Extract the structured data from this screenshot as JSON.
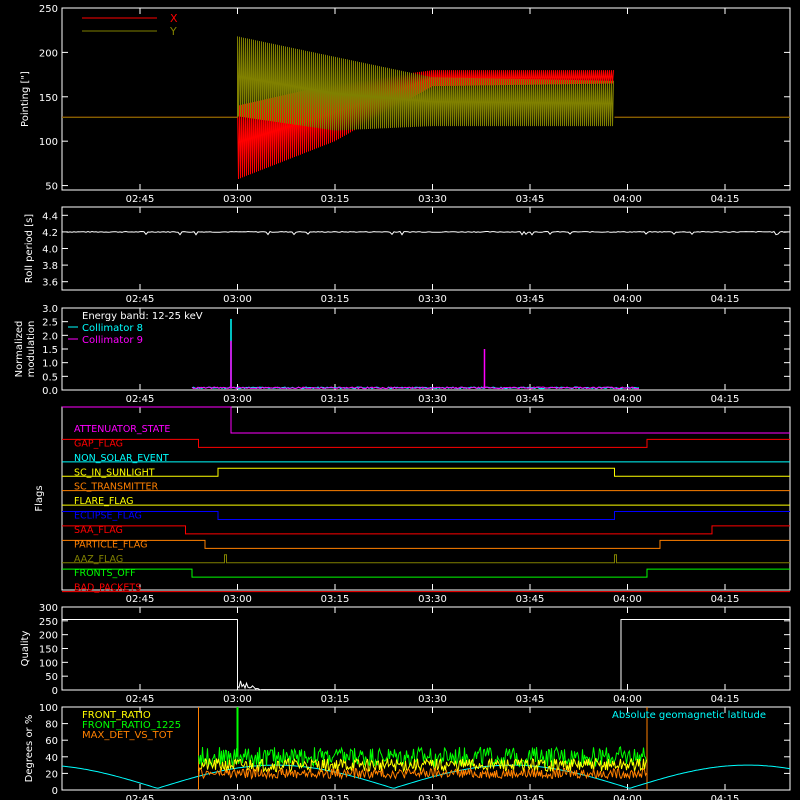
{
  "x_ticks": [
    "02:45",
    "03:00",
    "03:15",
    "03:30",
    "03:45",
    "04:00",
    "04:15"
  ],
  "chart_data": [
    {
      "type": "line",
      "ylabel": "Pointing [\"]",
      "ylim": [
        45,
        250
      ],
      "yticks": [
        50,
        100,
        150,
        200,
        250
      ],
      "legend_position": "top-left",
      "series": [
        {
          "name": "X",
          "color": "#ff0000",
          "pre_value": 127,
          "post_value": 127,
          "active": {
            "start": "03:00",
            "end": "03:58"
          },
          "envelope_hours": [
            3.0,
            3.25,
            3.5,
            3.97
          ],
          "envelope_max": [
            140,
            165,
            180,
            180
          ],
          "envelope_min": [
            57,
            100,
            162,
            165
          ]
        },
        {
          "name": "Y",
          "color": "#808000",
          "pre_value": 127,
          "post_value": 127,
          "active": {
            "start": "03:00",
            "end": "03:58"
          },
          "envelope_hours": [
            3.0,
            3.25,
            3.5,
            3.97
          ],
          "envelope_max": [
            218,
            195,
            172,
            168
          ],
          "envelope_min": [
            128,
            112,
            117,
            117
          ]
        }
      ]
    },
    {
      "type": "line",
      "ylabel": "Roll period [s]",
      "ylim": [
        3.5,
        4.5
      ],
      "yticks": [
        "3.6",
        "3.8",
        "4.0",
        "4.2",
        "4.4"
      ],
      "series": [
        {
          "name": "",
          "color": "#ffffff",
          "value": 4.2
        }
      ]
    },
    {
      "type": "line",
      "ylabel": "Normalized modulation",
      "ylim": [
        0,
        3.0
      ],
      "yticks": [
        "0.0",
        "0.5",
        "1.0",
        "1.5",
        "2.0",
        "2.5",
        "3.0"
      ],
      "annotation": "Energy band: 12-25 keV",
      "series": [
        {
          "name": "Collimator 8",
          "color": "#00ffff",
          "baseline": 0.05,
          "active": {
            "start": "02:53",
            "end": "04:02"
          },
          "spikes": [
            {
              "x": "02:59",
              "y": 2.6
            }
          ]
        },
        {
          "name": "Collimator 9",
          "color": "#ff00ff",
          "baseline": 0.05,
          "active": {
            "start": "02:53",
            "end": "04:02"
          },
          "spikes": [
            {
              "x": "02:59",
              "y": 1.8
            },
            {
              "x": "03:38",
              "y": 1.5
            }
          ]
        }
      ]
    },
    {
      "type": "line",
      "ylabel": "Flags",
      "flags": [
        {
          "name": "ATTENUATOR_STATE",
          "color": "#ff00ff",
          "low_before": "02:59"
        },
        {
          "name": "GAP_FLAG",
          "color": "#ff0000",
          "high_ranges": [
            [
              "start",
              "02:54"
            ],
            [
              "04:03",
              "end"
            ]
          ]
        },
        {
          "name": "NON_SOLAR_EVENT",
          "color": "#00ffff"
        },
        {
          "name": "SC_IN_SUNLIGHT",
          "color": "#ffff00",
          "high_ranges": [
            [
              "02:57",
              "03:58"
            ]
          ]
        },
        {
          "name": "SC_TRANSMITTER",
          "color": "#ff8000"
        },
        {
          "name": "FLARE_FLAG",
          "color": "#ffff00"
        },
        {
          "name": "ECLIPSE_FLAG",
          "color": "#0000ff",
          "high_ranges": [
            [
              "start",
              "02:57"
            ],
            [
              "03:58",
              "end"
            ]
          ]
        },
        {
          "name": "SAA_FLAG",
          "color": "#ff0000",
          "high_ranges": [
            [
              "start",
              "02:52"
            ],
            [
              "04:13",
              "end"
            ]
          ]
        },
        {
          "name": "PARTICLE_FLAG",
          "color": "#ff8000",
          "high_ranges": [
            [
              "start",
              "02:55"
            ],
            [
              "04:05",
              "end"
            ]
          ]
        },
        {
          "name": "AAZ_FLAG",
          "color": "#808000",
          "pulses": [
            "02:58",
            "03:58"
          ]
        },
        {
          "name": "FRONTS_OFF",
          "color": "#00ff00",
          "high_ranges": [
            [
              "start",
              "02:53"
            ],
            [
              "04:03",
              "end"
            ]
          ]
        },
        {
          "name": "BAD_PACKETS",
          "color": "#ff0000"
        }
      ]
    },
    {
      "type": "line",
      "ylabel": "Quality",
      "ylim": [
        0,
        300
      ],
      "yticks": [
        "0",
        "50",
        "100",
        "150",
        "200",
        "250",
        "300"
      ],
      "series": [
        {
          "name": "",
          "color": "#ffffff",
          "high_value": 255,
          "low_value": 0,
          "high_ranges": [
            [
              "start",
              "03:00"
            ],
            [
              "03:59",
              "end"
            ]
          ]
        }
      ]
    },
    {
      "type": "line",
      "ylabel": "Degrees or %",
      "ylim": [
        0,
        100
      ],
      "yticks": [
        "0",
        "20",
        "40",
        "60",
        "80",
        "100"
      ],
      "active": {
        "start": "02:54",
        "end": "04:03"
      },
      "series": [
        {
          "name": "FRONT_RATIO",
          "color": "#ffff00",
          "mean": 30
        },
        {
          "name": "FRONT_RATIO_1225",
          "color": "#00ff00",
          "mean": 40,
          "spike": {
            "x": "03:00",
            "y": 100
          }
        },
        {
          "name": "MAX_DET_VS_TOT",
          "color": "#ff8000",
          "mean": 20
        },
        {
          "name": "Absolute geomagnetic latitude",
          "color": "#00ffff",
          "min": 2,
          "max": 30
        }
      ]
    }
  ]
}
